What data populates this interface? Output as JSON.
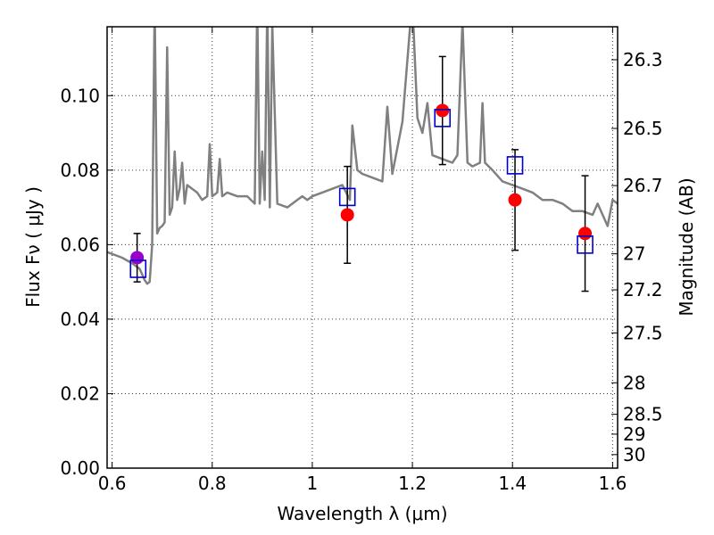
{
  "chart_data": {
    "type": "scatter",
    "xlabel": "Wavelength  λ (μm)",
    "ylabel": "Flux  Fν  ( μJy )",
    "y2label": "Magnitude (AB)",
    "xlim": [
      0.59,
      1.61
    ],
    "ylim": [
      0.0,
      0.1185
    ],
    "xticks": [
      0.6,
      0.8,
      1.0,
      1.2,
      1.4,
      1.6
    ],
    "xtick_labels": [
      "0.6",
      "0.8",
      "1",
      "1.2",
      "1.4",
      "1.6"
    ],
    "yticks": [
      0.0,
      0.02,
      0.04,
      0.06,
      0.08,
      0.1
    ],
    "ytick_labels": [
      "0.00",
      "0.02",
      "0.04",
      "0.06",
      "0.08",
      "0.10"
    ],
    "mag_ticks": [
      "26.3",
      "26.5",
      "26.7",
      "27",
      "27.2",
      "27.5",
      "28",
      "28.5",
      "29",
      "30"
    ],
    "grid": true,
    "series": [
      {
        "style": "line",
        "color": "#808080",
        "x": [
          0.59,
          0.62,
          0.64,
          0.655,
          0.66,
          0.665,
          0.67,
          0.675,
          0.68,
          0.685,
          0.69,
          0.695,
          0.7,
          0.705,
          0.71,
          0.715,
          0.72,
          0.725,
          0.73,
          0.735,
          0.74,
          0.745,
          0.75,
          0.76,
          0.77,
          0.78,
          0.79,
          0.795,
          0.8,
          0.81,
          0.815,
          0.82,
          0.83,
          0.85,
          0.87,
          0.885,
          0.89,
          0.895,
          0.9,
          0.905,
          0.91,
          0.915,
          0.92,
          0.93,
          0.95,
          0.97,
          0.98,
          0.99,
          1.0,
          1.02,
          1.04,
          1.06,
          1.075,
          1.08,
          1.09,
          1.1,
          1.12,
          1.14,
          1.15,
          1.16,
          1.18,
          1.195,
          1.2,
          1.21,
          1.22,
          1.23,
          1.24,
          1.26,
          1.28,
          1.29,
          1.3,
          1.31,
          1.32,
          1.335,
          1.34,
          1.345,
          1.36,
          1.38,
          1.4,
          1.42,
          1.44,
          1.45,
          1.46,
          1.48,
          1.5,
          1.52,
          1.54,
          1.56,
          1.57,
          1.58,
          1.59,
          1.6,
          1.61
        ],
        "y": [
          0.058,
          0.0565,
          0.055,
          0.0535,
          0.052,
          0.0505,
          0.0495,
          0.05,
          0.06,
          0.125,
          0.063,
          0.0645,
          0.065,
          0.066,
          0.113,
          0.068,
          0.07,
          0.085,
          0.072,
          0.075,
          0.082,
          0.071,
          0.076,
          0.075,
          0.074,
          0.072,
          0.073,
          0.087,
          0.073,
          0.074,
          0.083,
          0.073,
          0.074,
          0.073,
          0.073,
          0.071,
          0.125,
          0.071,
          0.085,
          0.072,
          0.125,
          0.07,
          0.119,
          0.071,
          0.07,
          0.072,
          0.073,
          0.072,
          0.073,
          0.074,
          0.075,
          0.076,
          0.072,
          0.092,
          0.08,
          0.079,
          0.078,
          0.077,
          0.097,
          0.079,
          0.093,
          0.118,
          0.125,
          0.094,
          0.09,
          0.098,
          0.084,
          0.083,
          0.082,
          0.084,
          0.12,
          0.082,
          0.081,
          0.082,
          0.098,
          0.082,
          0.08,
          0.077,
          0.076,
          0.075,
          0.074,
          0.073,
          0.072,
          0.072,
          0.071,
          0.069,
          0.069,
          0.068,
          0.071,
          0.068,
          0.065,
          0.072,
          0.071
        ]
      },
      {
        "style": "markers",
        "marker": "circle",
        "color": "#ff0000",
        "x": [
          1.07,
          1.26,
          1.405,
          1.545
        ],
        "y": [
          0.068,
          0.096,
          0.072,
          0.063
        ],
        "yerr": [
          0.013,
          0.0145,
          0.0135,
          0.0155
        ]
      },
      {
        "style": "markers",
        "marker": "circle",
        "color": "#9900cc",
        "x": [
          0.65
        ],
        "y": [
          0.0565
        ],
        "yerr": [
          0.0065
        ]
      },
      {
        "style": "markers",
        "marker": "open-square",
        "color": "#0000cc",
        "x": [
          0.652,
          1.07,
          1.26,
          1.405,
          1.545
        ],
        "y": [
          0.0535,
          0.0728,
          0.094,
          0.0813,
          0.06
        ]
      }
    ]
  }
}
